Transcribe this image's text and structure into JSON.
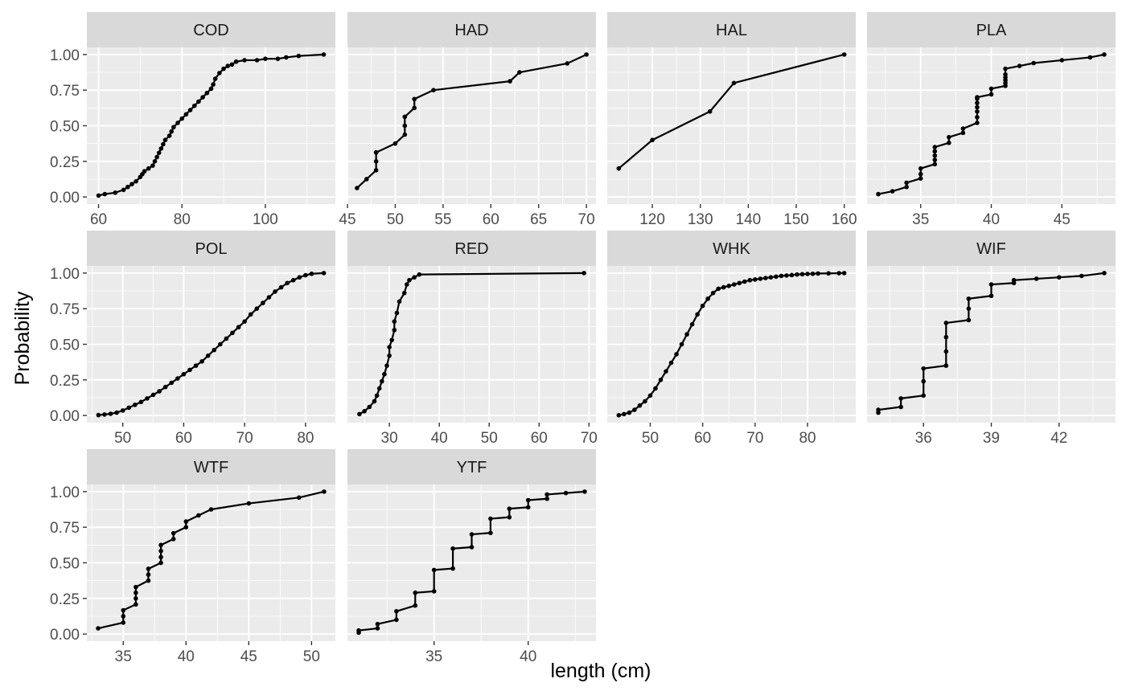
{
  "figure": {
    "xlabel": "length (cm)",
    "ylabel": "Probability",
    "y_ticks": [
      "0.00",
      "0.25",
      "0.50",
      "0.75",
      "1.00"
    ],
    "colors": {
      "panel_bg": "#ebebeb",
      "strip_bg": "#d9d9d9",
      "grid_major": "#ffffff",
      "line": "#000000",
      "axis_text": "#4d4d4d",
      "strip_text": "#1a1a1a",
      "title_text": "#000000"
    }
  },
  "chart_data": [
    {
      "type": "line",
      "panel": "COD",
      "xlim": [
        57.2,
        116.8
      ],
      "ylim": [
        -0.05,
        1.05
      ],
      "xticks": [
        60,
        80,
        100
      ],
      "x": [
        60,
        61.5,
        64,
        66,
        67,
        68,
        69,
        70,
        70.5,
        71,
        72,
        73,
        73.5,
        74,
        74.5,
        75,
        75.5,
        76,
        77,
        77.5,
        78,
        79,
        80,
        81,
        82,
        83,
        84,
        85,
        86,
        87,
        87.5,
        88,
        89,
        90,
        91,
        92,
        93,
        95,
        98,
        100,
        103,
        105,
        108,
        114
      ],
      "y": [
        0.01,
        0.02,
        0.03,
        0.05,
        0.07,
        0.09,
        0.11,
        0.14,
        0.16,
        0.18,
        0.2,
        0.22,
        0.25,
        0.28,
        0.31,
        0.34,
        0.37,
        0.4,
        0.43,
        0.46,
        0.49,
        0.52,
        0.55,
        0.58,
        0.61,
        0.64,
        0.67,
        0.7,
        0.73,
        0.76,
        0.79,
        0.83,
        0.87,
        0.9,
        0.92,
        0.93,
        0.95,
        0.96,
        0.96,
        0.97,
        0.97,
        0.98,
        0.99,
        1.0
      ]
    },
    {
      "type": "line",
      "panel": "HAD",
      "xlim": [
        45,
        71
      ],
      "ylim": [
        -0.05,
        1.05
      ],
      "xticks": [
        45,
        50,
        55,
        60,
        65,
        70
      ],
      "x": [
        46,
        47,
        48,
        48,
        48,
        48,
        50,
        51,
        51,
        51,
        51,
        52,
        52,
        54,
        62,
        63,
        68,
        70
      ],
      "y": [
        0.0625,
        0.125,
        0.1875,
        0.25,
        0.3125,
        0.3125,
        0.375,
        0.4375,
        0.5,
        0.5625,
        0.5625,
        0.625,
        0.6875,
        0.75,
        0.8125,
        0.875,
        0.9375,
        1.0
      ]
    },
    {
      "type": "line",
      "panel": "HAL",
      "xlim": [
        110.6,
        162.4
      ],
      "ylim": [
        -0.05,
        1.05
      ],
      "xticks": [
        120,
        130,
        140,
        150,
        160
      ],
      "x": [
        113,
        120,
        132,
        137,
        160
      ],
      "y": [
        0.2,
        0.4,
        0.6,
        0.8,
        1.0
      ]
    },
    {
      "type": "line",
      "panel": "PLA",
      "xlim": [
        31.2,
        48.8
      ],
      "ylim": [
        -0.05,
        1.05
      ],
      "xticks": [
        35,
        40,
        45
      ],
      "x": [
        32,
        33,
        34,
        34,
        35,
        35,
        35,
        36,
        36,
        36,
        36,
        36,
        37,
        37,
        38,
        38,
        39,
        39,
        39,
        39,
        39,
        39,
        39,
        40,
        40,
        41,
        41,
        41,
        41,
        41,
        41,
        42,
        43,
        45,
        47,
        48
      ],
      "y": [
        0.02,
        0.04,
        0.07,
        0.1,
        0.13,
        0.16,
        0.2,
        0.23,
        0.26,
        0.29,
        0.32,
        0.35,
        0.38,
        0.42,
        0.45,
        0.48,
        0.52,
        0.56,
        0.6,
        0.63,
        0.66,
        0.69,
        0.7,
        0.72,
        0.76,
        0.78,
        0.8,
        0.82,
        0.84,
        0.86,
        0.9,
        0.92,
        0.94,
        0.96,
        0.98,
        1.0
      ]
    },
    {
      "type": "line",
      "panel": "POL",
      "xlim": [
        44.1,
        84.9
      ],
      "ylim": [
        -0.05,
        1.05
      ],
      "xticks": [
        50,
        60,
        70,
        80
      ],
      "x": [
        46,
        47,
        48,
        49,
        50,
        51,
        52,
        53,
        54,
        55,
        56,
        57,
        58,
        59,
        60,
        61,
        62,
        63,
        64,
        65,
        66,
        67,
        68,
        69,
        70,
        71,
        72,
        73,
        74,
        75,
        76,
        77,
        78,
        79,
        80,
        81,
        83
      ],
      "y": [
        0.003,
        0.007,
        0.012,
        0.02,
        0.035,
        0.055,
        0.075,
        0.095,
        0.12,
        0.145,
        0.17,
        0.2,
        0.23,
        0.26,
        0.29,
        0.32,
        0.35,
        0.38,
        0.42,
        0.46,
        0.5,
        0.54,
        0.58,
        0.62,
        0.66,
        0.71,
        0.75,
        0.79,
        0.83,
        0.87,
        0.9,
        0.93,
        0.95,
        0.97,
        0.985,
        0.995,
        1.0
      ]
    },
    {
      "type": "line",
      "panel": "RED",
      "xlim": [
        21.6,
        71.4
      ],
      "ylim": [
        -0.05,
        1.05
      ],
      "xticks": [
        30,
        40,
        50,
        60,
        70
      ],
      "x": [
        24,
        25,
        26,
        27,
        27.5,
        28,
        28.5,
        29,
        29.5,
        30,
        30,
        30.5,
        31,
        31,
        31.5,
        32,
        33,
        33.5,
        34,
        35,
        36,
        69
      ],
      "y": [
        0.01,
        0.03,
        0.06,
        0.1,
        0.14,
        0.19,
        0.24,
        0.29,
        0.35,
        0.42,
        0.48,
        0.53,
        0.6,
        0.66,
        0.72,
        0.8,
        0.86,
        0.92,
        0.95,
        0.97,
        0.99,
        1.0
      ]
    },
    {
      "type": "line",
      "panel": "WHK",
      "xlim": [
        41.8,
        89.2
      ],
      "ylim": [
        -0.05,
        1.05
      ],
      "xticks": [
        50,
        60,
        70,
        80
      ],
      "x": [
        44,
        45,
        46,
        47,
        48,
        49,
        50,
        51,
        52,
        53,
        54,
        55,
        56,
        57,
        58,
        59,
        60,
        61,
        62,
        63,
        64,
        65,
        66,
        67,
        68,
        69,
        70,
        71,
        72,
        73,
        74,
        75,
        76,
        77,
        78,
        79,
        80,
        81,
        82,
        84,
        86,
        87
      ],
      "y": [
        0.002,
        0.01,
        0.02,
        0.04,
        0.07,
        0.1,
        0.14,
        0.19,
        0.25,
        0.31,
        0.37,
        0.43,
        0.5,
        0.57,
        0.64,
        0.71,
        0.77,
        0.82,
        0.86,
        0.89,
        0.9,
        0.91,
        0.92,
        0.93,
        0.94,
        0.95,
        0.955,
        0.96,
        0.965,
        0.97,
        0.975,
        0.98,
        0.983,
        0.986,
        0.99,
        0.992,
        0.994,
        0.995,
        0.997,
        0.998,
        0.999,
        1.0
      ]
    },
    {
      "type": "line",
      "panel": "WIF",
      "xlim": [
        33.5,
        44.5
      ],
      "ylim": [
        -0.05,
        1.05
      ],
      "xticks": [
        36,
        39,
        42
      ],
      "x": [
        34,
        34,
        35,
        35,
        36,
        36,
        36,
        37,
        37,
        37,
        37,
        38,
        38,
        38,
        39,
        39,
        40,
        40,
        41,
        42,
        43,
        44
      ],
      "y": [
        0.02,
        0.04,
        0.06,
        0.12,
        0.14,
        0.24,
        0.33,
        0.35,
        0.45,
        0.55,
        0.65,
        0.67,
        0.75,
        0.82,
        0.84,
        0.92,
        0.93,
        0.95,
        0.96,
        0.97,
        0.98,
        1.0
      ]
    },
    {
      "type": "line",
      "panel": "WTF",
      "xlim": [
        32.1,
        51.9
      ],
      "ylim": [
        -0.05,
        1.05
      ],
      "xticks": [
        35,
        40,
        45,
        50
      ],
      "x": [
        33,
        35,
        35,
        35,
        36,
        36,
        36,
        36,
        37,
        37,
        37,
        38,
        38,
        38,
        38,
        39,
        39,
        40,
        40,
        41,
        42,
        45,
        49,
        51
      ],
      "y": [
        0.04,
        0.08,
        0.125,
        0.167,
        0.208,
        0.25,
        0.29,
        0.33,
        0.375,
        0.417,
        0.458,
        0.5,
        0.54,
        0.583,
        0.625,
        0.667,
        0.708,
        0.75,
        0.79,
        0.833,
        0.875,
        0.917,
        0.958,
        1.0
      ]
    },
    {
      "type": "line",
      "panel": "YTF",
      "xlim": [
        30.4,
        43.6
      ],
      "ylim": [
        -0.05,
        1.05
      ],
      "xticks": [
        35,
        40
      ],
      "x": [
        31,
        31,
        32,
        32,
        33,
        33,
        34,
        34,
        35,
        35,
        36,
        36,
        37,
        37,
        38,
        38,
        39,
        39,
        40,
        40,
        41,
        41,
        42,
        43
      ],
      "y": [
        0.01,
        0.025,
        0.04,
        0.07,
        0.1,
        0.16,
        0.2,
        0.29,
        0.3,
        0.45,
        0.46,
        0.6,
        0.61,
        0.7,
        0.71,
        0.81,
        0.82,
        0.88,
        0.89,
        0.94,
        0.95,
        0.98,
        0.99,
        1.0
      ]
    }
  ]
}
